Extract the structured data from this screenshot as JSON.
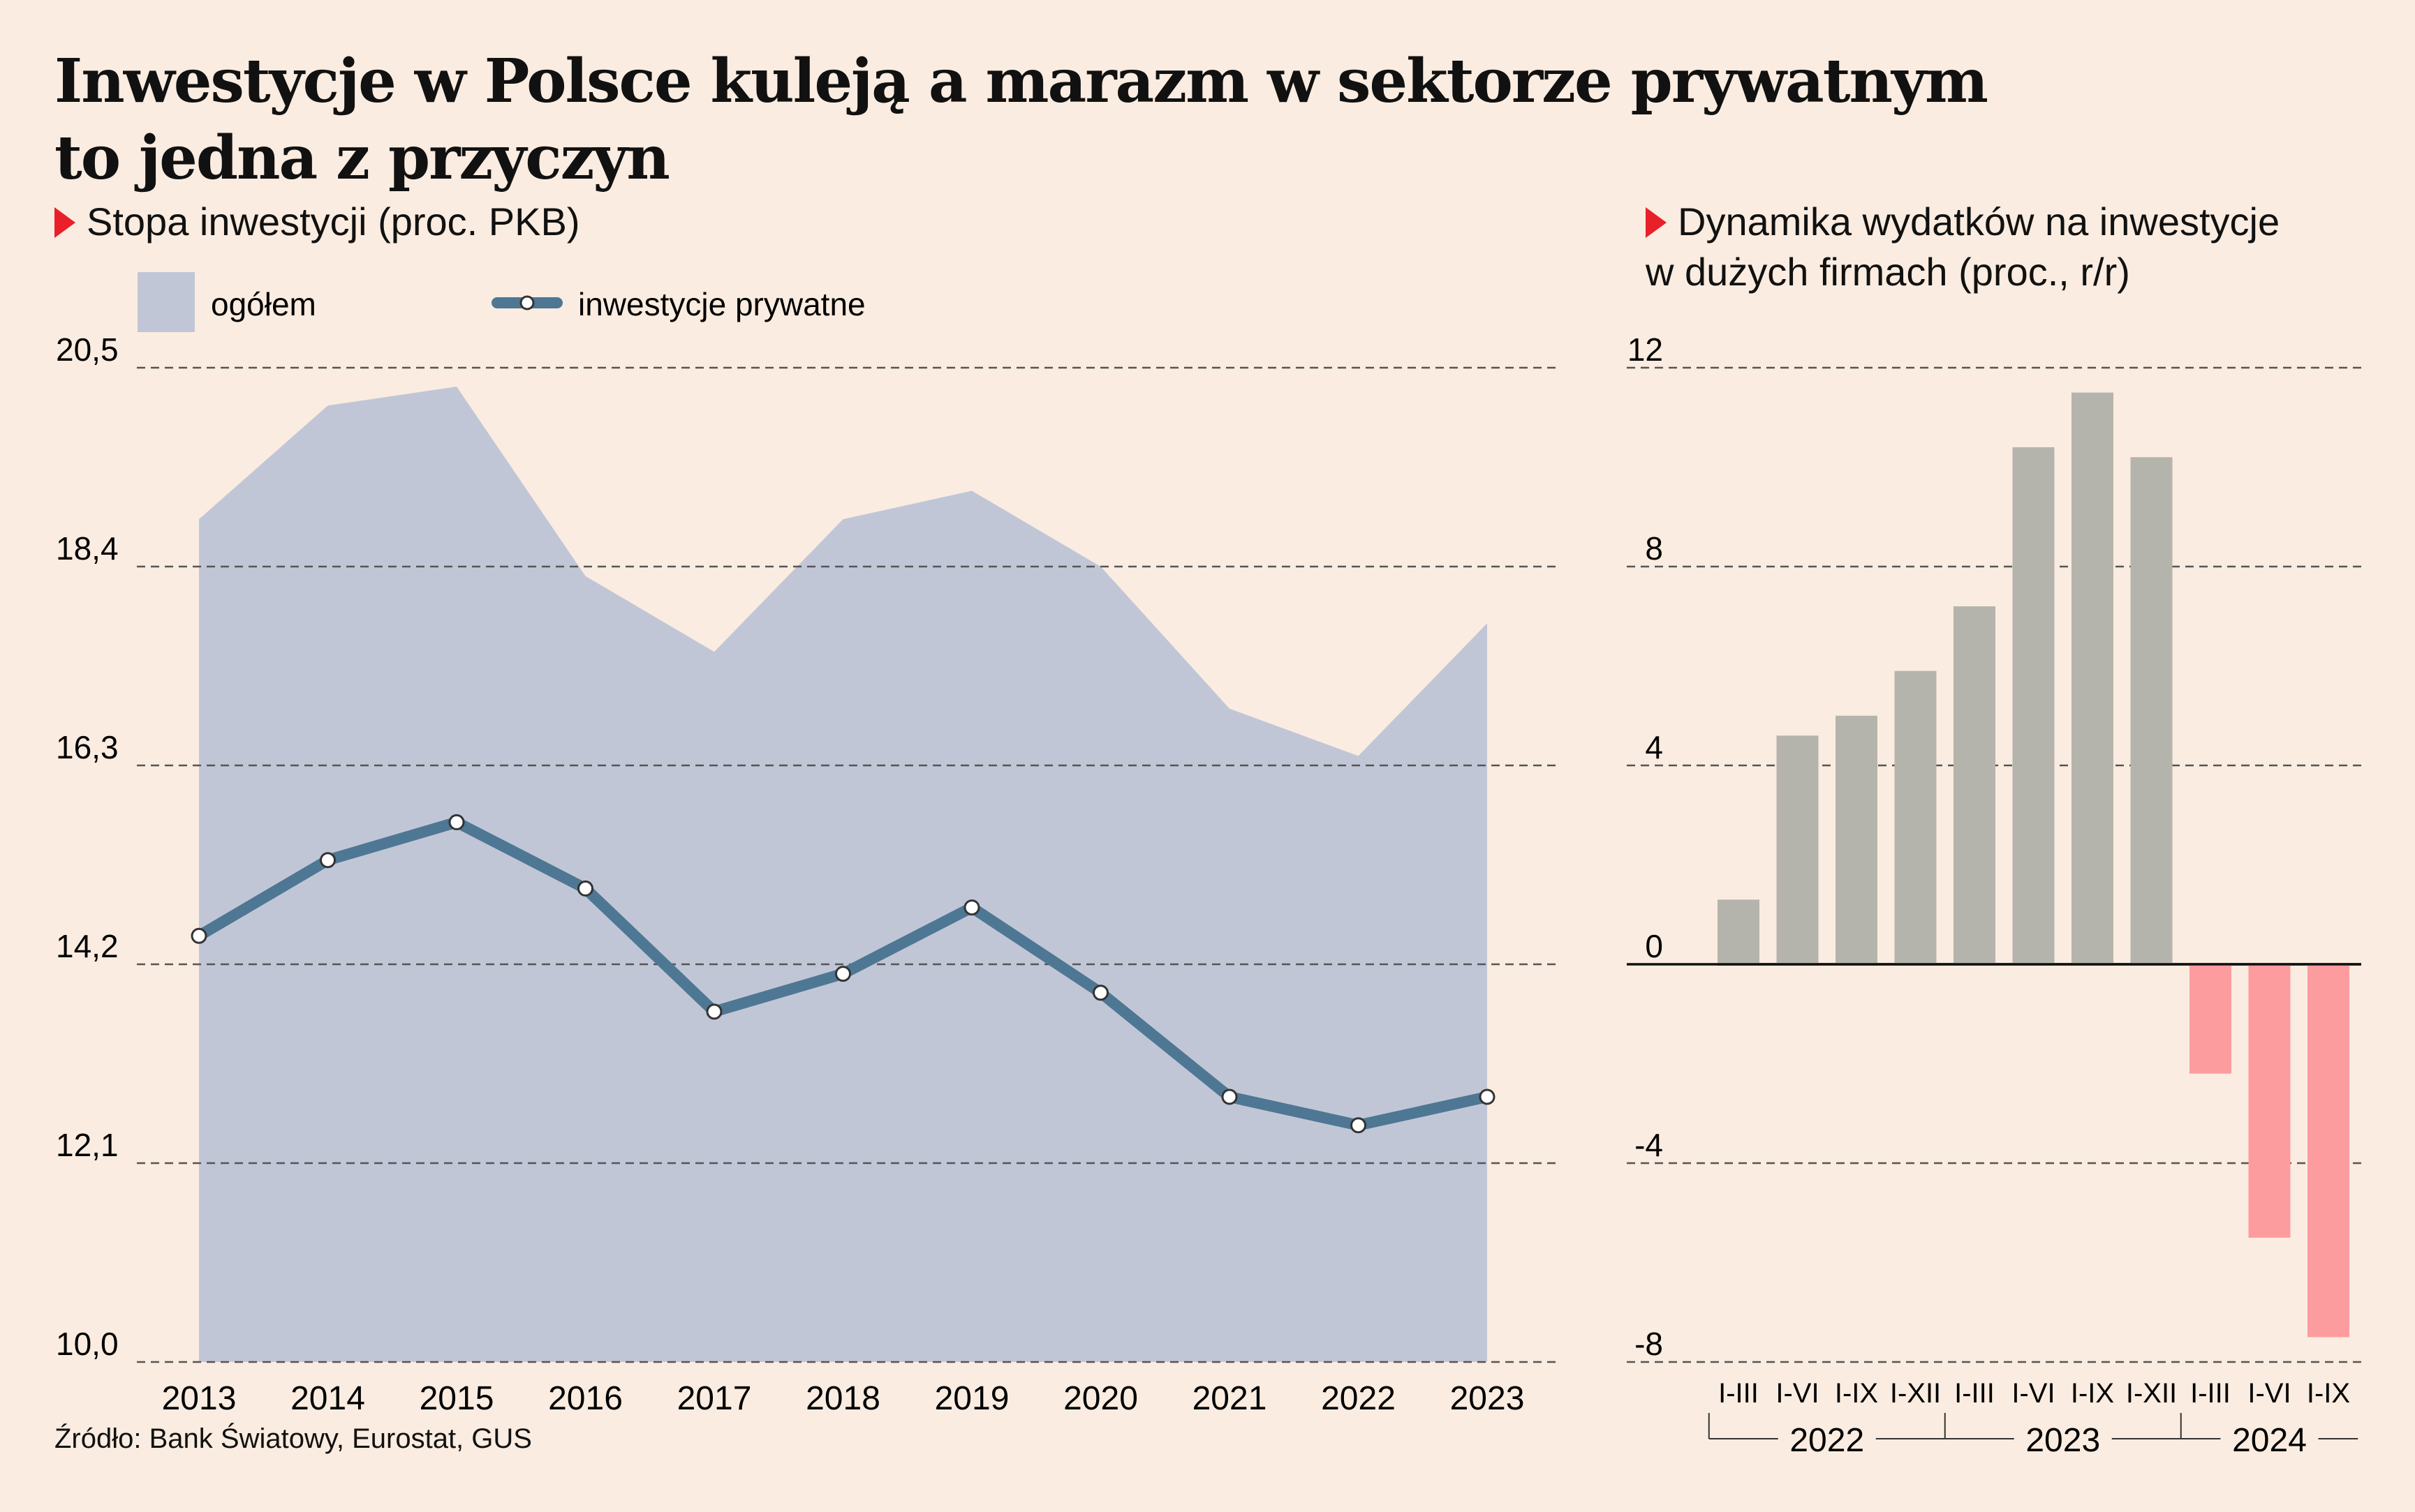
{
  "title": {
    "line1": "Inwestycje w Polsce kuleją a marazm w sektorze prywatnym",
    "line2": "to jedna z przyczyn"
  },
  "left_subtitle": "Stopa inwestycji (proc. PKB)",
  "right_subtitle": {
    "line1": "Dynamika wydatków na inwestycje",
    "line2": "w dużych firmach (proc., r/r)"
  },
  "source": "Źródło: Bank Światowy, Eurostat, GUS",
  "colors": {
    "background": "#faece0",
    "area": "#c1c6d7",
    "line": "#4e7793",
    "bar_positive": "#b5b4ac",
    "bar_negative": "#fd9c9f",
    "accent_triangle": "#e8202a",
    "grid": "#555555"
  },
  "chart_data": [
    {
      "type": "area",
      "title": "Stopa inwestycji (proc. PKB)",
      "legend_placement": "top-left",
      "grid": true,
      "x": [
        "2013",
        "2014",
        "2015",
        "2016",
        "2017",
        "2018",
        "2019",
        "2020",
        "2021",
        "2022",
        "2023"
      ],
      "yticks": [
        "20,5",
        "18,4",
        "16,3",
        "14,2",
        "12,1",
        "10,0"
      ],
      "ytick_values": [
        20.5,
        18.4,
        16.3,
        14.2,
        12.1,
        10.0
      ],
      "ylim": [
        10.0,
        20.5
      ],
      "series": [
        {
          "name": "ogółem",
          "type": "area",
          "values": [
            18.9,
            20.1,
            20.3,
            18.3,
            17.5,
            18.9,
            19.2,
            18.4,
            16.9,
            16.4,
            17.8
          ]
        },
        {
          "name": "inwestycje prywatne",
          "type": "line",
          "values": [
            14.5,
            15.3,
            15.7,
            15.0,
            13.7,
            14.1,
            14.8,
            13.9,
            12.8,
            12.5,
            12.8
          ]
        }
      ]
    },
    {
      "type": "bar",
      "title": "Dynamika wydatków na inwestycje w dużych firmach (proc., r/r)",
      "grid": true,
      "categories": [
        "I-III",
        "I-VI",
        "I-IX",
        "I-XII",
        "I-III",
        "I-VI",
        "I-IX",
        "I-XII",
        "I-III",
        "I-VI",
        "I-IX"
      ],
      "groups": [
        {
          "label": "2022",
          "start": 0,
          "end": 3
        },
        {
          "label": "2023",
          "start": 4,
          "end": 7
        },
        {
          "label": "2024",
          "start": 8,
          "end": 10
        }
      ],
      "values": [
        1.3,
        4.6,
        5.0,
        5.9,
        7.2,
        10.4,
        11.5,
        10.2,
        -2.2,
        -5.5,
        -7.5
      ],
      "yticks": [
        "12",
        "8",
        "4",
        "0",
        "-4",
        "-8"
      ],
      "ytick_values": [
        12,
        8,
        4,
        0,
        -4,
        -8
      ],
      "ylim": [
        -8,
        12
      ]
    }
  ]
}
